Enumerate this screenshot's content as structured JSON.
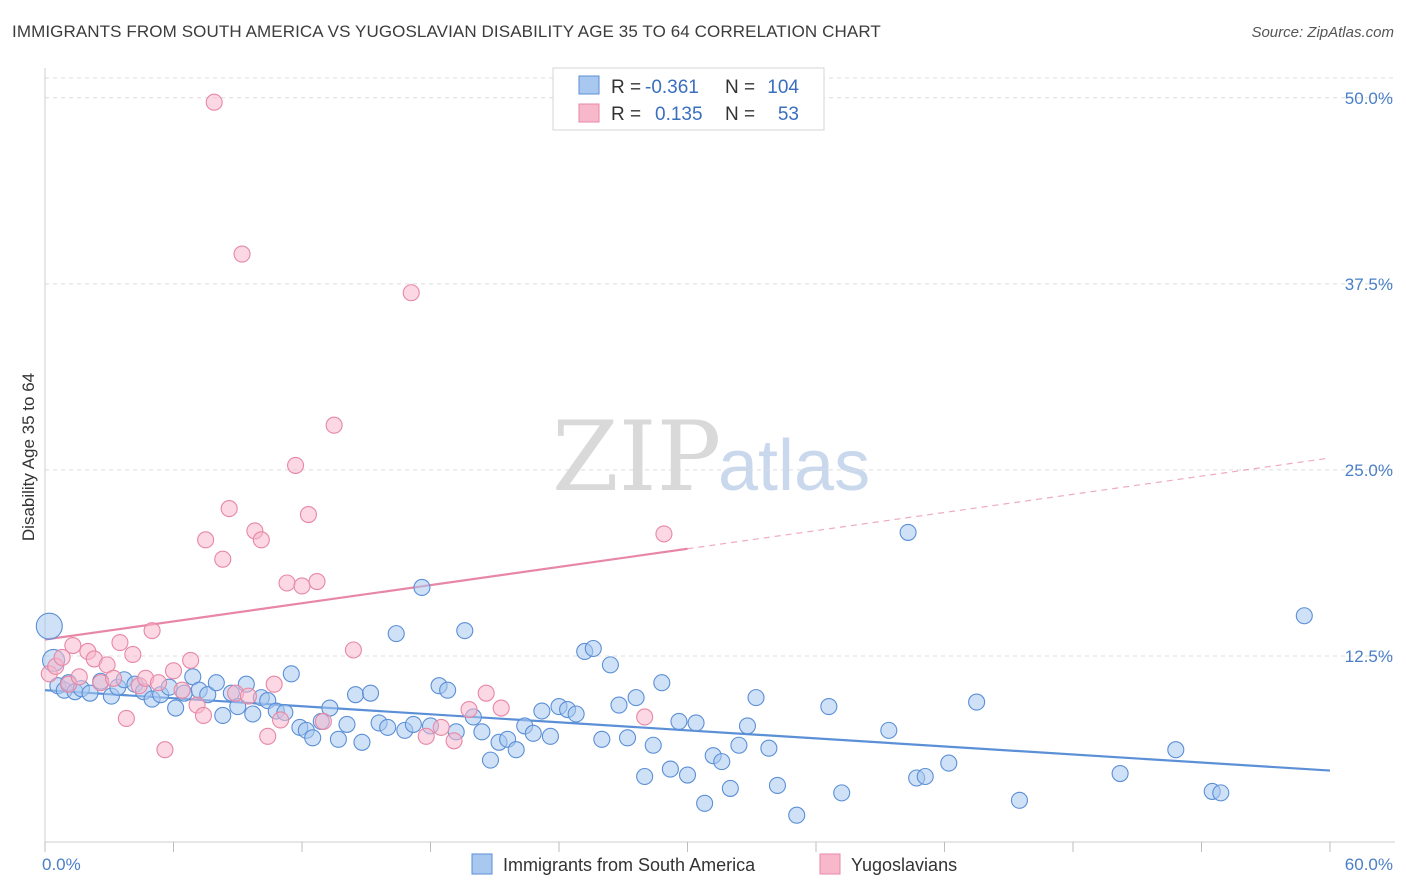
{
  "header": {
    "title": "IMMIGRANTS FROM SOUTH AMERICA VS YUGOSLAVIAN DISABILITY AGE 35 TO 64 CORRELATION CHART",
    "source": "Source: ZipAtlas.com"
  },
  "watermark": {
    "zip": "ZIP",
    "atlas": "atlas"
  },
  "legend": {
    "rows": [
      {
        "r_label": "R =",
        "r_value": "-0.361",
        "n_label": "N =",
        "n_value": "104",
        "color": "#a8c8f0",
        "stroke": "#5b8fd6"
      },
      {
        "r_label": "R =",
        "r_value": "0.135",
        "n_label": "N =",
        "n_value": "53",
        "color": "#f7b8cc",
        "stroke": "#e887a5"
      }
    ]
  },
  "bottom_legend": [
    {
      "label": "Immigrants from South America",
      "color": "#a8c8f0",
      "stroke": "#5b8fd6"
    },
    {
      "label": "Yugoslavians",
      "color": "#f7b8cc",
      "stroke": "#e887a5"
    }
  ],
  "chart_data": {
    "type": "scatter",
    "title": "IMMIGRANTS FROM SOUTH AMERICA VS YUGOSLAVIAN DISABILITY AGE 35 TO 64 CORRELATION CHART",
    "xlabel": "",
    "ylabel": "Disability Age 35 to 64",
    "xlim": [
      0,
      60
    ],
    "ylim": [
      0,
      52
    ],
    "x_tick_labels": {
      "min": "0.0%",
      "max": "60.0%"
    },
    "y_ticks": [
      12.5,
      25,
      37.5,
      50
    ],
    "y_tick_labels": [
      "12.5%",
      "25.0%",
      "37.5%",
      "50.0%"
    ],
    "grid": true,
    "legend_position": "top-center",
    "series": [
      {
        "name": "Immigrants from South America",
        "color": "#5b8fd6",
        "fill": "#a8c8f0",
        "trend": {
          "x": [
            0,
            60
          ],
          "y": [
            10.2,
            4.8
          ],
          "dashed_from": null
        },
        "points": [
          [
            0.2,
            14.5
          ],
          [
            0.4,
            12.2
          ],
          [
            0.6,
            10.5
          ],
          [
            0.9,
            10.2
          ],
          [
            1.1,
            10.7
          ],
          [
            1.4,
            10.1
          ],
          [
            1.7,
            10.3
          ],
          [
            2.1,
            10.0
          ],
          [
            2.6,
            10.8
          ],
          [
            3.1,
            9.8
          ],
          [
            3.4,
            10.4
          ],
          [
            3.7,
            10.9
          ],
          [
            4.2,
            10.6
          ],
          [
            4.6,
            10.1
          ],
          [
            5.0,
            9.6
          ],
          [
            5.4,
            9.9
          ],
          [
            5.8,
            10.4
          ],
          [
            6.1,
            9.0
          ],
          [
            6.5,
            10.0
          ],
          [
            6.9,
            11.1
          ],
          [
            7.2,
            10.2
          ],
          [
            7.6,
            9.9
          ],
          [
            8.0,
            10.7
          ],
          [
            8.3,
            8.5
          ],
          [
            8.7,
            10.0
          ],
          [
            9.0,
            9.1
          ],
          [
            9.4,
            10.6
          ],
          [
            9.7,
            8.6
          ],
          [
            10.1,
            9.7
          ],
          [
            10.4,
            9.5
          ],
          [
            10.8,
            8.8
          ],
          [
            11.2,
            8.7
          ],
          [
            11.5,
            11.3
          ],
          [
            11.9,
            7.7
          ],
          [
            12.2,
            7.5
          ],
          [
            12.5,
            7.0
          ],
          [
            12.9,
            8.1
          ],
          [
            13.3,
            9.0
          ],
          [
            13.7,
            6.9
          ],
          [
            14.1,
            7.9
          ],
          [
            14.5,
            9.9
          ],
          [
            14.8,
            6.7
          ],
          [
            15.2,
            10.0
          ],
          [
            15.6,
            8.0
          ],
          [
            16.0,
            7.7
          ],
          [
            16.4,
            14.0
          ],
          [
            16.8,
            7.5
          ],
          [
            17.2,
            7.9
          ],
          [
            17.6,
            17.1
          ],
          [
            18.0,
            7.8
          ],
          [
            18.4,
            10.5
          ],
          [
            18.8,
            10.2
          ],
          [
            19.2,
            7.4
          ],
          [
            19.6,
            14.2
          ],
          [
            20.0,
            8.4
          ],
          [
            20.4,
            7.4
          ],
          [
            20.8,
            5.5
          ],
          [
            21.2,
            6.7
          ],
          [
            21.6,
            6.9
          ],
          [
            22.0,
            6.2
          ],
          [
            22.4,
            7.8
          ],
          [
            22.8,
            7.3
          ],
          [
            23.2,
            8.8
          ],
          [
            23.6,
            7.1
          ],
          [
            24.0,
            9.1
          ],
          [
            24.4,
            8.9
          ],
          [
            24.8,
            8.6
          ],
          [
            25.2,
            12.8
          ],
          [
            25.6,
            13.0
          ],
          [
            26.0,
            6.9
          ],
          [
            26.4,
            11.9
          ],
          [
            26.8,
            9.2
          ],
          [
            27.2,
            7.0
          ],
          [
            27.6,
            9.7
          ],
          [
            28.0,
            4.4
          ],
          [
            28.4,
            6.5
          ],
          [
            28.8,
            10.7
          ],
          [
            29.2,
            4.9
          ],
          [
            29.6,
            8.1
          ],
          [
            30.0,
            4.5
          ],
          [
            30.4,
            8.0
          ],
          [
            30.8,
            2.6
          ],
          [
            31.2,
            5.8
          ],
          [
            31.6,
            5.4
          ],
          [
            32.0,
            3.6
          ],
          [
            32.4,
            6.5
          ],
          [
            32.8,
            7.8
          ],
          [
            33.2,
            9.7
          ],
          [
            33.8,
            6.3
          ],
          [
            34.2,
            3.8
          ],
          [
            35.1,
            1.8
          ],
          [
            36.6,
            9.1
          ],
          [
            37.2,
            3.3
          ],
          [
            39.4,
            7.5
          ],
          [
            40.7,
            4.3
          ],
          [
            41.1,
            4.4
          ],
          [
            42.2,
            5.3
          ],
          [
            43.5,
            9.4
          ],
          [
            45.5,
            2.8
          ],
          [
            50.2,
            4.6
          ],
          [
            40.3,
            20.8
          ],
          [
            52.8,
            6.2
          ],
          [
            54.5,
            3.4
          ],
          [
            54.9,
            3.3
          ],
          [
            58.8,
            15.2
          ]
        ]
      },
      {
        "name": "Yugoslavians",
        "color": "#e887a5",
        "fill": "#f7b8cc",
        "trend": {
          "x": [
            0,
            60
          ],
          "y": [
            13.6,
            25.8
          ],
          "dashed_from": 30
        },
        "points": [
          [
            0.2,
            11.3
          ],
          [
            0.5,
            11.8
          ],
          [
            0.8,
            12.4
          ],
          [
            1.1,
            10.6
          ],
          [
            1.3,
            13.2
          ],
          [
            1.6,
            11.1
          ],
          [
            2.0,
            12.8
          ],
          [
            2.3,
            12.3
          ],
          [
            2.6,
            10.7
          ],
          [
            2.9,
            11.9
          ],
          [
            3.2,
            11.0
          ],
          [
            3.5,
            13.4
          ],
          [
            3.8,
            8.3
          ],
          [
            4.1,
            12.6
          ],
          [
            4.4,
            10.5
          ],
          [
            4.7,
            11.0
          ],
          [
            5.0,
            14.2
          ],
          [
            5.3,
            10.7
          ],
          [
            5.6,
            6.2
          ],
          [
            6.0,
            11.5
          ],
          [
            6.4,
            10.2
          ],
          [
            6.8,
            12.2
          ],
          [
            7.1,
            9.2
          ],
          [
            7.4,
            8.5
          ],
          [
            7.5,
            20.3
          ],
          [
            7.9,
            49.7
          ],
          [
            8.3,
            19.0
          ],
          [
            8.6,
            22.4
          ],
          [
            8.9,
            10.0
          ],
          [
            9.2,
            39.5
          ],
          [
            9.5,
            9.8
          ],
          [
            9.8,
            20.9
          ],
          [
            10.1,
            20.3
          ],
          [
            10.4,
            7.1
          ],
          [
            10.7,
            10.6
          ],
          [
            11.0,
            8.2
          ],
          [
            11.3,
            17.4
          ],
          [
            11.7,
            25.3
          ],
          [
            12.0,
            17.2
          ],
          [
            12.3,
            22.0
          ],
          [
            12.7,
            17.5
          ],
          [
            13.0,
            8.1
          ],
          [
            13.5,
            28.0
          ],
          [
            14.4,
            12.9
          ],
          [
            17.1,
            36.9
          ],
          [
            17.8,
            7.1
          ],
          [
            18.5,
            7.7
          ],
          [
            19.1,
            6.8
          ],
          [
            19.8,
            8.9
          ],
          [
            20.6,
            10.0
          ],
          [
            21.3,
            9.0
          ],
          [
            28.0,
            8.4
          ],
          [
            28.9,
            20.7
          ]
        ]
      }
    ]
  }
}
